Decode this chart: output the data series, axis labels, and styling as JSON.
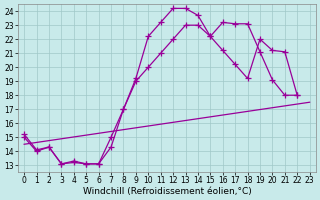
{
  "bg_color": "#c8eaea",
  "grid_color": "#a0c8c8",
  "line_color": "#990099",
  "xlabel": "Windchill (Refroidissement éolien,°C)",
  "xlim": [
    -0.5,
    23.5
  ],
  "ylim": [
    12.5,
    24.5
  ],
  "xticks": [
    0,
    1,
    2,
    3,
    4,
    5,
    6,
    7,
    8,
    9,
    10,
    11,
    12,
    13,
    14,
    15,
    16,
    17,
    18,
    19,
    20,
    21,
    22,
    23
  ],
  "yticks": [
    13,
    14,
    15,
    16,
    17,
    18,
    19,
    20,
    21,
    22,
    23,
    24
  ],
  "curve1_x": [
    0,
    1,
    2,
    3,
    4,
    5,
    6,
    7,
    8,
    9,
    10,
    11,
    12,
    13,
    14,
    15,
    16,
    17,
    18,
    19,
    20,
    21,
    22
  ],
  "curve1_y": [
    15.2,
    14.1,
    14.3,
    13.1,
    13.3,
    13.1,
    13.1,
    14.3,
    17.0,
    19.2,
    22.2,
    23.2,
    24.2,
    24.2,
    23.7,
    22.2,
    23.2,
    23.1,
    23.1,
    21.1,
    19.1,
    18.0,
    18.0
  ],
  "curve2_x": [
    0,
    1,
    2,
    3,
    4,
    5,
    6,
    7,
    8,
    9,
    10,
    11,
    12,
    13,
    14,
    15,
    16,
    17,
    18,
    19,
    20,
    21,
    22
  ],
  "curve2_y": [
    15.0,
    14.0,
    14.3,
    13.1,
    13.2,
    13.1,
    13.1,
    15.0,
    17.0,
    19.0,
    20.0,
    21.0,
    22.0,
    23.0,
    23.0,
    22.2,
    21.2,
    20.2,
    19.2,
    22.0,
    21.2,
    21.1,
    18.0
  ],
  "curve3_x": [
    0,
    23
  ],
  "curve3_y": [
    14.5,
    17.5
  ],
  "marker": "+",
  "markersize": 4,
  "linewidth": 0.9,
  "tick_fontsize": 5.5,
  "label_fontsize": 6.5
}
